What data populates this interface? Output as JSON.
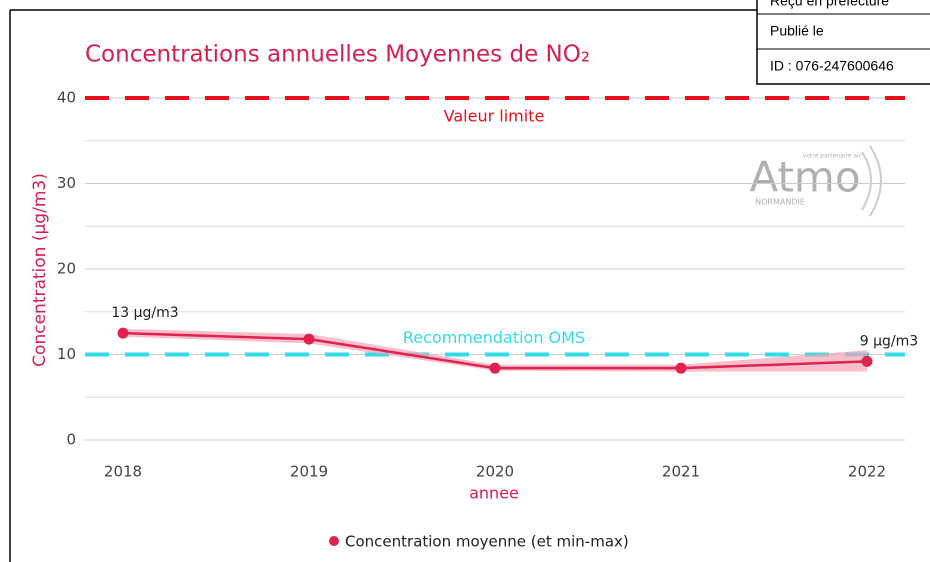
{
  "chart_data": {
    "type": "line",
    "title": "Concentrations annuelles Moyennes de NO₂",
    "x_label": "annee",
    "y_label": "Concentration (µg/m3)",
    "categories": [
      "2018",
      "2019",
      "2020",
      "2021",
      "2022"
    ],
    "series": [
      {
        "name": "Concentration moyenne (et min-max)",
        "color": "#e0224f",
        "band_color": "#f4a3b5",
        "values": [
          12.5,
          11.8,
          8.4,
          8.4,
          9.2
        ],
        "min": [
          12.1,
          11.3,
          8.1,
          8.0,
          8.0
        ],
        "max": [
          13.0,
          12.4,
          8.8,
          8.8,
          10.5
        ],
        "value_labels": [
          "13 µg/m3",
          null,
          null,
          null,
          "9 µg/m3"
        ]
      }
    ],
    "ylim": [
      0,
      40
    ],
    "yticks": [
      0,
      10,
      20,
      30,
      40
    ],
    "minor_yticks": [
      5,
      15,
      25,
      35
    ],
    "grid": true,
    "reference_lines": [
      {
        "value": 40,
        "label": "Valeur limite",
        "color": "#e8101a"
      },
      {
        "value": 10,
        "label": "Recommendation OMS",
        "color": "#2fdde6"
      }
    ],
    "watermark": {
      "brand": "Atmo",
      "tagline": "votre partenaire air",
      "region": "NORMANDIE"
    }
  },
  "stamp": {
    "lines": [
      "Reçu en préfecture",
      "Publié le",
      "ID : 076-247600646"
    ]
  }
}
